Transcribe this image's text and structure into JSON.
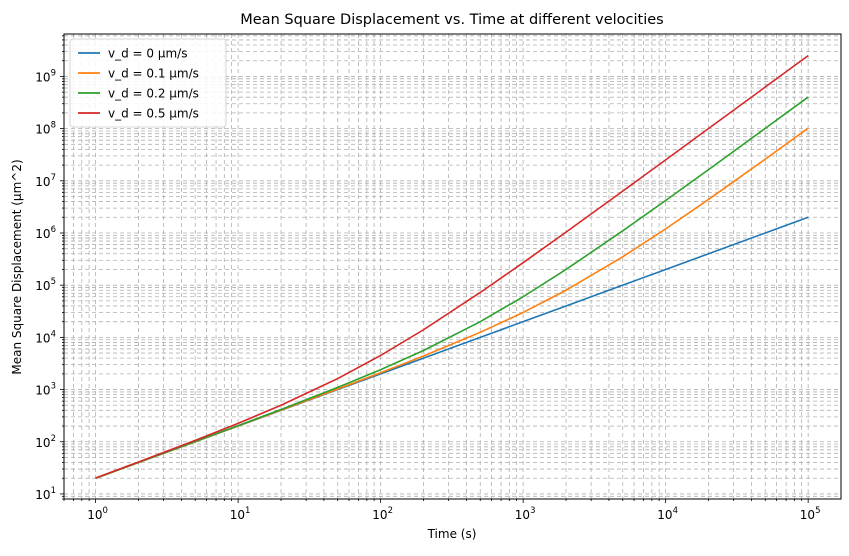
{
  "chart_data": {
    "type": "line",
    "title": "Mean Square Displacement vs. Time at different velocities",
    "xlabel": "Time (s)",
    "ylabel": "Mean Square Displacement (μm^2)",
    "xscale": "log",
    "yscale": "log",
    "xlim": [
      0.6,
      170000
    ],
    "ylim": [
      8,
      6500000000
    ],
    "grid": true,
    "grid_minor": true,
    "legend_position": "upper-left",
    "x_ticks": [
      {
        "value": 1,
        "base": "10",
        "exp": "0"
      },
      {
        "value": 10,
        "base": "10",
        "exp": "1"
      },
      {
        "value": 100,
        "base": "10",
        "exp": "2"
      },
      {
        "value": 1000,
        "base": "10",
        "exp": "3"
      },
      {
        "value": 10000,
        "base": "10",
        "exp": "4"
      },
      {
        "value": 100000,
        "base": "10",
        "exp": "5"
      }
    ],
    "y_ticks": [
      {
        "value": 10,
        "base": "10",
        "exp": "1"
      },
      {
        "value": 100,
        "base": "10",
        "exp": "2"
      },
      {
        "value": 1000,
        "base": "10",
        "exp": "3"
      },
      {
        "value": 10000,
        "base": "10",
        "exp": "4"
      },
      {
        "value": 100000,
        "base": "10",
        "exp": "5"
      },
      {
        "value": 1000000,
        "base": "10",
        "exp": "6"
      },
      {
        "value": 10000000,
        "base": "10",
        "exp": "7"
      },
      {
        "value": 100000000,
        "base": "10",
        "exp": "8"
      },
      {
        "value": 1000000000,
        "base": "10",
        "exp": "9"
      }
    ],
    "x": [
      1,
      2,
      5,
      10,
      20,
      50,
      100,
      200,
      500,
      1000,
      2000,
      5000,
      10000,
      20000,
      50000,
      100000
    ],
    "series": [
      {
        "name": "v_d = 0 μm/s",
        "color": "#1f77b4",
        "values": [
          20,
          40,
          100,
          200,
          400,
          1000,
          2000,
          4000,
          10000,
          20000,
          40000,
          100000,
          200000,
          400000,
          1000000,
          2000000
        ]
      },
      {
        "name": "v_d = 0.1 μm/s",
        "color": "#ff7f0e",
        "values": [
          20.01,
          40.04,
          100.25,
          201,
          404,
          1025,
          2100,
          4400,
          12500,
          30000,
          80000,
          350000,
          1200000,
          4400000,
          26000000,
          102000000
        ]
      },
      {
        "name": "v_d = 0.2 μm/s",
        "color": "#2ca02c",
        "values": [
          20.04,
          40.16,
          101,
          204,
          416,
          1100,
          2400,
          5600,
          20000,
          60000,
          200000,
          1100000,
          4200000,
          16400000,
          101000000,
          402000000
        ]
      },
      {
        "name": "v_d = 0.5 μm/s",
        "color": "#d62728",
        "values": [
          20.25,
          41,
          106.25,
          225,
          500,
          1625,
          4500,
          14000,
          72500,
          270000,
          1040000,
          6350000,
          25200000,
          100400000,
          626000000,
          2502000000
        ]
      }
    ]
  }
}
